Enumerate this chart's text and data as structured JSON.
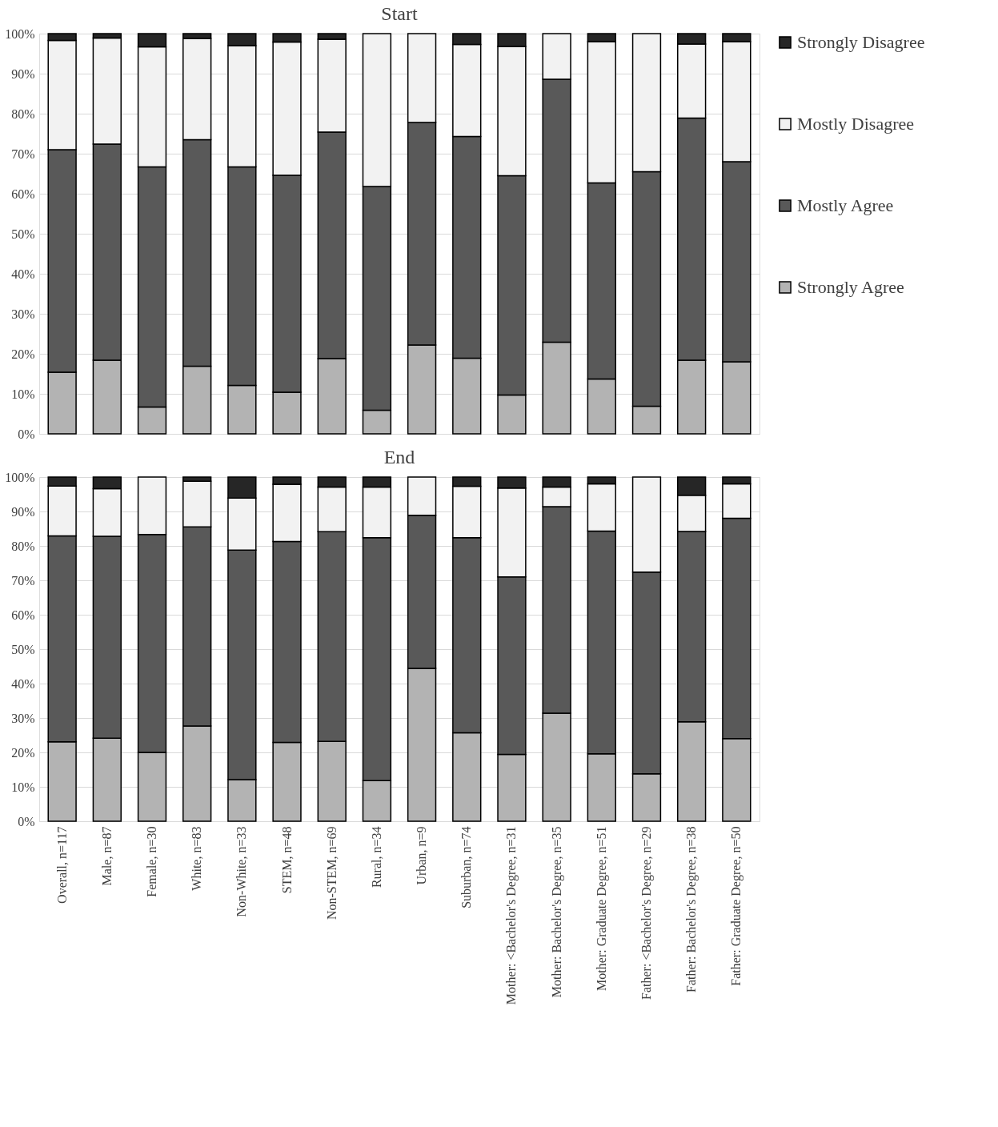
{
  "chart_data": [
    {
      "type": "bar",
      "title": "Start",
      "stacked": true,
      "legend": "right",
      "grid": "y",
      "tick_labels": "y",
      "categories": [
        "Overall, n=117",
        "Male, n=87",
        "Female, n=30",
        "White, n=83",
        "Non-White, n=33",
        "STEM, n=48",
        "Non-STEM, n=69",
        "Rural, n=34",
        "Urban, n=9",
        "Suburban, n=74",
        "Mother: <Bachelor's Degree, n=31",
        "Mother: Bachelor's Degree, n=35",
        "Mother: Graduate Degree, n=51",
        "Father: <Bachelor's Degree, n=29",
        "Father: Bachelor's Degree, n=38",
        "Father: Graduate Degree, n=50"
      ],
      "ylim": [
        0,
        100
      ],
      "yticks": [
        {
          "value": 0,
          "label": "0%"
        },
        {
          "value": 10,
          "label": "10%"
        },
        {
          "value": 20,
          "label": "20%"
        },
        {
          "value": 30,
          "label": "30%"
        },
        {
          "value": 40,
          "label": "40%"
        },
        {
          "value": 50,
          "label": "50%"
        },
        {
          "value": 60,
          "label": "60%"
        },
        {
          "value": 70,
          "label": "70%"
        },
        {
          "value": 80,
          "label": "80%"
        },
        {
          "value": 90,
          "label": "90%"
        },
        {
          "value": 100,
          "label": "100%"
        }
      ],
      "series": [
        {
          "name": "Strongly Agree",
          "color": "#b3b3b3",
          "values": [
            15.4,
            18.4,
            6.7,
            16.9,
            12.1,
            10.4,
            18.8,
            5.9,
            22.2,
            18.9,
            9.7,
            22.9,
            13.7,
            6.9,
            18.4,
            18
          ]
        },
        {
          "name": "Mostly Agree",
          "color": "#595959",
          "values": [
            55.6,
            54,
            60,
            56.6,
            54.6,
            54.2,
            56.6,
            55.9,
            55.6,
            55.4,
            54.8,
            65.7,
            49,
            58.6,
            60.5,
            50
          ]
        },
        {
          "name": "Mostly Disagree",
          "color": "#f2f2f2",
          "values": [
            27.3,
            26.5,
            30,
            25.3,
            30.3,
            33.3,
            23.2,
            38.2,
            22.2,
            23,
            32.3,
            11.4,
            35.3,
            34.5,
            18.5,
            30
          ]
        },
        {
          "name": "Strongly Disagree",
          "color": "#262626",
          "values": [
            1.7,
            1.1,
            3.3,
            1.2,
            3,
            2.1,
            1.4,
            0,
            0,
            2.7,
            3.2,
            0,
            2,
            0,
            2.6,
            2
          ]
        }
      ]
    },
    {
      "type": "bar",
      "title": "End",
      "stacked": true,
      "legend": "right",
      "grid": "y",
      "categories": [
        "Overall, n=117",
        "Male, n=87",
        "Female, n=30",
        "White, n=83",
        "Non-White, n=33",
        "STEM, n=48",
        "Non-STEM, n=69",
        "Rural, n=34",
        "Urban, n=9",
        "Suburban, n=74",
        "Mother: <Bachelor's Degree, n=31",
        "Mother: Bachelor's Degree, n=35",
        "Mother: Graduate Degree, n=51",
        "Father: <Bachelor's Degree, n=29",
        "Father: Bachelor's Degree, n=38",
        "Father: Graduate Degree, n=50"
      ],
      "ylim": [
        0,
        100
      ],
      "yticks": [
        {
          "value": 0,
          "label": "0%"
        },
        {
          "value": 10,
          "label": "10%"
        },
        {
          "value": 20,
          "label": "20%"
        },
        {
          "value": 30,
          "label": "30%"
        },
        {
          "value": 40,
          "label": "40%"
        },
        {
          "value": 50,
          "label": "50%"
        },
        {
          "value": 60,
          "label": "60%"
        },
        {
          "value": 70,
          "label": "70%"
        },
        {
          "value": 80,
          "label": "80%"
        },
        {
          "value": 90,
          "label": "90%"
        },
        {
          "value": 100,
          "label": "100%"
        }
      ],
      "series": [
        {
          "name": "Strongly Agree",
          "color": "#b3b3b3",
          "values": [
            23.1,
            24.1,
            20,
            27.7,
            12.1,
            22.9,
            23.2,
            11.8,
            44.4,
            25.7,
            19.4,
            31.4,
            19.6,
            13.8,
            28.9,
            24
          ]
        },
        {
          "name": "Mostly Agree",
          "color": "#595959",
          "values": [
            59.8,
            58.7,
            63.3,
            57.8,
            66.7,
            58.4,
            60.9,
            70.6,
            44.5,
            56.7,
            51.6,
            60,
            64.7,
            58.6,
            55.3,
            64
          ]
        },
        {
          "name": "Mostly Disagree",
          "color": "#f2f2f2",
          "values": [
            14.5,
            13.8,
            16.7,
            13.3,
            15.1,
            16.6,
            13,
            14.7,
            11.1,
            14.9,
            25.8,
            5.7,
            13.7,
            27.6,
            10.5,
            10
          ]
        },
        {
          "name": "Strongly Disagree",
          "color": "#262626",
          "values": [
            2.6,
            3.4,
            0,
            1.2,
            6.1,
            2.1,
            2.9,
            2.9,
            0,
            2.7,
            3.2,
            2.9,
            2,
            0,
            5.3,
            2
          ]
        }
      ]
    }
  ]
}
